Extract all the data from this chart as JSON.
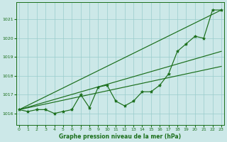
{
  "x": [
    0,
    1,
    2,
    3,
    4,
    5,
    6,
    7,
    8,
    9,
    10,
    11,
    12,
    13,
    14,
    15,
    16,
    17,
    18,
    19,
    20,
    21,
    22,
    23
  ],
  "y_data": [
    1016.2,
    1016.1,
    1016.2,
    1016.2,
    1016.0,
    1016.1,
    1016.2,
    1017.0,
    1016.3,
    1017.4,
    1017.5,
    1016.65,
    1016.4,
    1016.65,
    1017.15,
    1017.15,
    1017.5,
    1018.1,
    1019.3,
    1019.7,
    1020.1,
    1020.0,
    1021.5,
    1021.5
  ],
  "ref_line1": [
    [
      0,
      23
    ],
    [
      1016.2,
      1021.5
    ]
  ],
  "ref_line2": [
    [
      0,
      23
    ],
    [
      1016.2,
      1019.3
    ]
  ],
  "ref_line3": [
    [
      0,
      23
    ],
    [
      1016.2,
      1018.5
    ]
  ],
  "line_color": "#1a6e1a",
  "bg_color": "#cce8e8",
  "grid_color": "#99cccc",
  "text_color": "#1a6e1a",
  "xlabel": "Graphe pression niveau de la mer (hPa)",
  "ylim": [
    1015.4,
    1021.9
  ],
  "xlim": [
    -0.3,
    23.3
  ],
  "yticks": [
    1016,
    1017,
    1018,
    1019,
    1020,
    1021
  ],
  "xticks": [
    0,
    1,
    2,
    3,
    4,
    5,
    6,
    7,
    8,
    9,
    10,
    11,
    12,
    13,
    14,
    15,
    16,
    17,
    18,
    19,
    20,
    21,
    22,
    23
  ]
}
